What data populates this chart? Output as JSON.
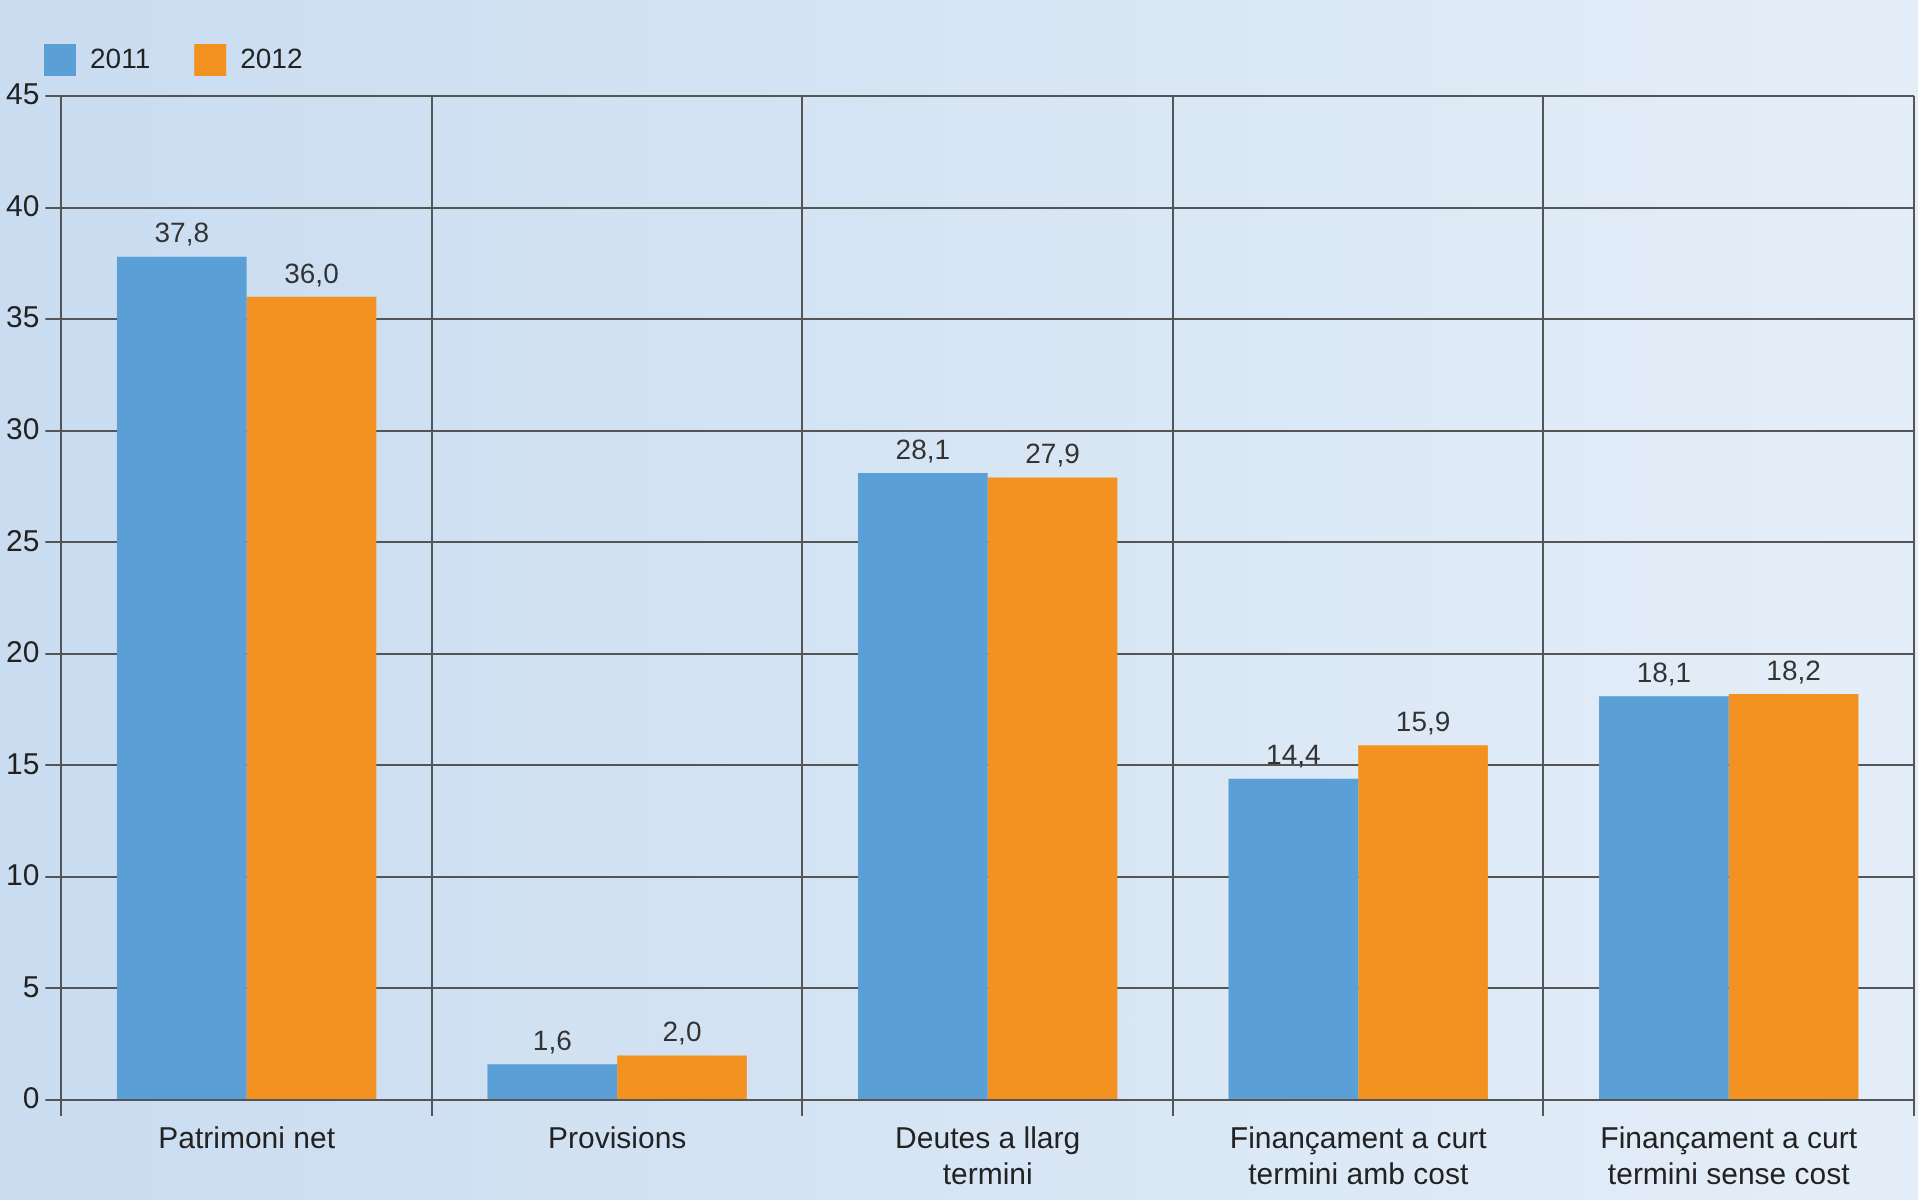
{
  "chart_data": {
    "type": "bar",
    "categories": [
      "Patrimoni net",
      "Provisions",
      "Deutes a llarg termini",
      "Finançament a curt termini amb cost",
      "Finançament a curt termini sense cost"
    ],
    "series": [
      {
        "name": "2011",
        "color": "#5a9fd6",
        "values": [
          37.8,
          1.6,
          28.1,
          14.4,
          18.1
        ],
        "value_labels": [
          "37,8",
          "1,6",
          "28,1",
          "14,4",
          "18,1"
        ]
      },
      {
        "name": "2012",
        "color": "#f39121",
        "values": [
          36.0,
          2.0,
          27.9,
          15.9,
          18.2
        ],
        "value_labels": [
          "36,0",
          "2,0",
          "27,9",
          "15,9",
          "18,2"
        ]
      }
    ],
    "ylim": [
      0,
      45
    ],
    "yticks": [
      0,
      5,
      10,
      15,
      20,
      25,
      30,
      35,
      40,
      45
    ],
    "grid": true,
    "legend": "top left"
  }
}
